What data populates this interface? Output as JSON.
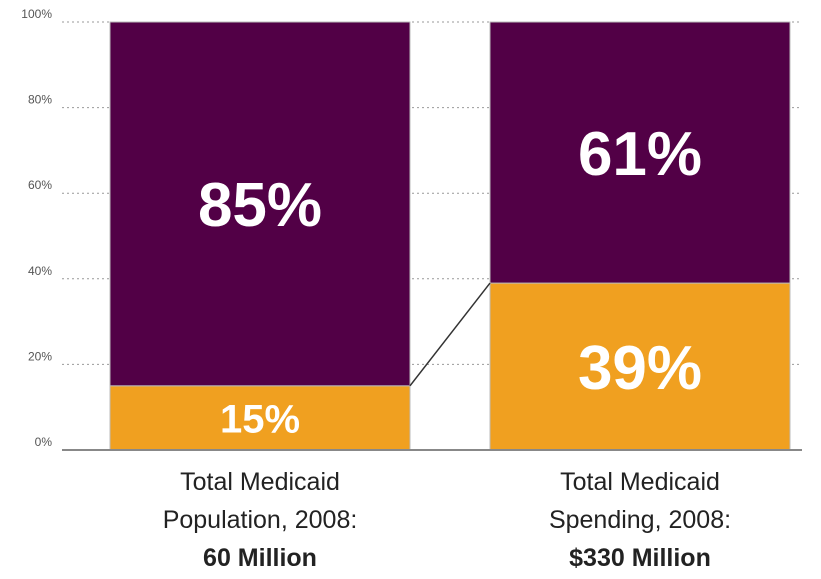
{
  "chart_data": {
    "type": "bar",
    "stacked": true,
    "ylim": [
      0,
      100
    ],
    "y_ticks": [
      "0%",
      "20%",
      "40%",
      "60%",
      "80%",
      "100%"
    ],
    "grid": true,
    "categories": [
      {
        "line1": "Total Medicaid",
        "line2": "Population, 2008:",
        "line3": "60 Million"
      },
      {
        "line1": "Total Medicaid",
        "line2": "Spending, 2008:",
        "line3": "$330 Million"
      }
    ],
    "series": [
      {
        "values": [
          15,
          39
        ],
        "labels": [
          "15%",
          "39%"
        ],
        "color": "#f0a020"
      },
      {
        "values": [
          85,
          61
        ],
        "labels": [
          "85%",
          "61%"
        ],
        "color": "#520046"
      }
    ],
    "connector": true,
    "colors": {
      "accent": "#520046",
      "highlight": "#f0a020",
      "grid": "#999999",
      "axis": "#888888"
    }
  }
}
